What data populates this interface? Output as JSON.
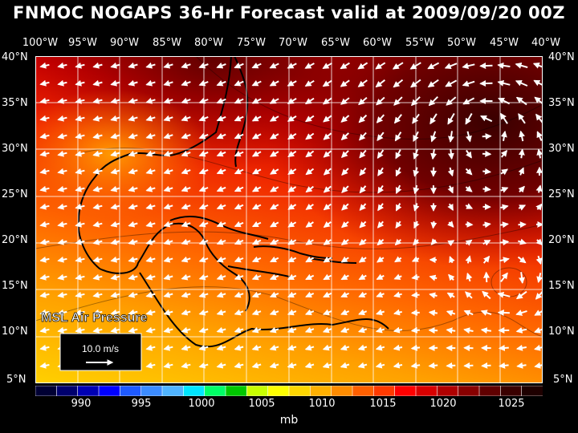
{
  "title": "FNMOC NOGAPS 36-Hr Forecast valid at 2009/09/20 00Z",
  "field_label": "MSL Air Pressure",
  "vector_scale_label": "10.0 m/s",
  "units": "mb",
  "longitude_labels": [
    "100°W",
    "95°W",
    "90°W",
    "85°W",
    "80°W",
    "75°W",
    "70°W",
    "65°W",
    "60°W",
    "55°W",
    "50°W",
    "45°W",
    "40°W"
  ],
  "latitude_labels": [
    "40°N",
    "35°N",
    "30°N",
    "25°N",
    "20°N",
    "15°N",
    "10°N",
    "5°N"
  ],
  "colorbar": {
    "tick_labels": [
      "990",
      "995",
      "1000",
      "1005",
      "1010",
      "1015",
      "1020",
      "1025"
    ],
    "colors": [
      "#000033",
      "#00006e",
      "#0000b4",
      "#0000ff",
      "#1e5aff",
      "#3c8cff",
      "#50b4ff",
      "#00e6ff",
      "#00ff66",
      "#00c800",
      "#c8ff00",
      "#ffff00",
      "#ffd700",
      "#ffb000",
      "#ff8c00",
      "#ff6000",
      "#ff3a00",
      "#ff0000",
      "#d80000",
      "#b00000",
      "#880000",
      "#600000",
      "#3a0000",
      "#1e0000"
    ]
  },
  "map_extent": {
    "lon": [
      -100,
      -40
    ],
    "lat": [
      5,
      40
    ]
  }
}
